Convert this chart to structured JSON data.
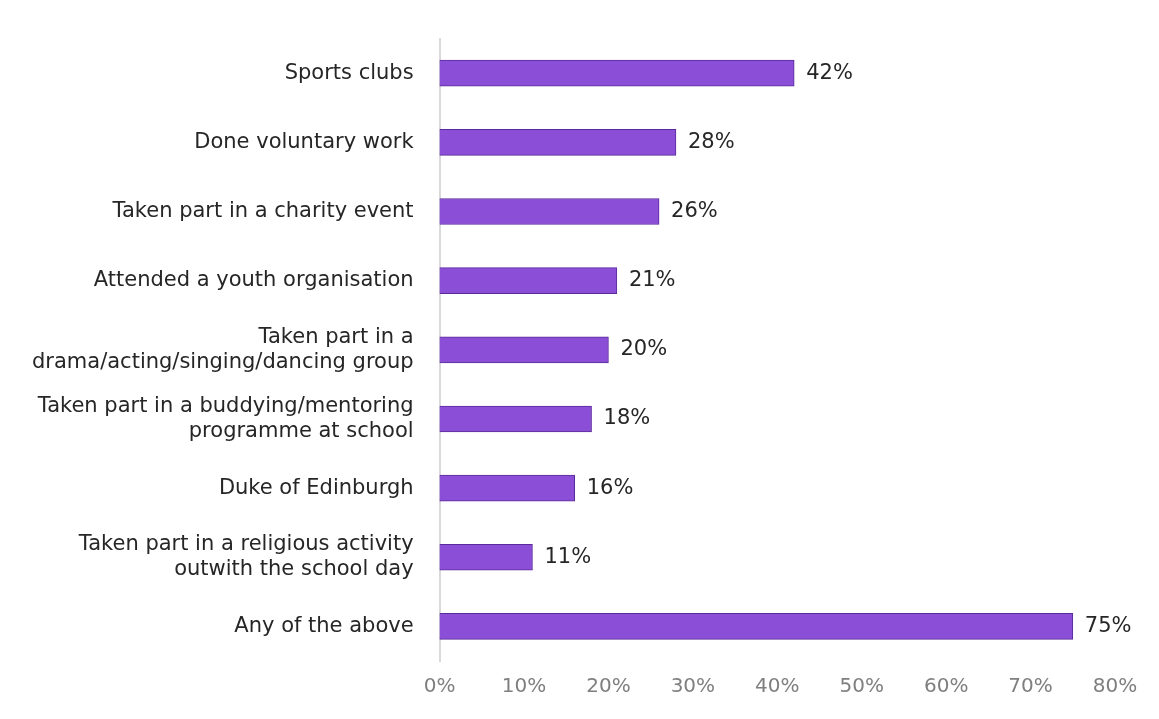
{
  "chart_data": {
    "type": "bar",
    "orientation": "horizontal",
    "categories": [
      "Sports clubs",
      "Done voluntary work",
      "Taken part in a charity event",
      "Attended a youth organisation",
      "Taken part in a\ndrama/acting/singing/dancing group",
      "Taken part in a buddying/mentoring\nprogramme at school",
      "Duke of Edinburgh",
      "Taken part in a religious activity\noutwith the school day",
      "Any of the above"
    ],
    "values": [
      42,
      28,
      26,
      21,
      20,
      18,
      16,
      11,
      75
    ],
    "color": "#8a4fd6",
    "xlim": [
      0,
      80
    ],
    "xticks": [
      {
        "value": 0,
        "label": "0%"
      },
      {
        "value": 10,
        "label": "10%"
      },
      {
        "value": 20,
        "label": "20%"
      },
      {
        "value": 30,
        "label": "30%"
      },
      {
        "value": 40,
        "label": "40%"
      },
      {
        "value": 50,
        "label": "50%"
      },
      {
        "value": 60,
        "label": "60%"
      },
      {
        "value": 70,
        "label": "70%"
      },
      {
        "value": 80,
        "label": "80%"
      }
    ],
    "value_labels": [
      "42%",
      "28%",
      "26%",
      "21%",
      "20%",
      "18%",
      "16%",
      "11%",
      "75%"
    ],
    "grid": false,
    "legend": false
  }
}
